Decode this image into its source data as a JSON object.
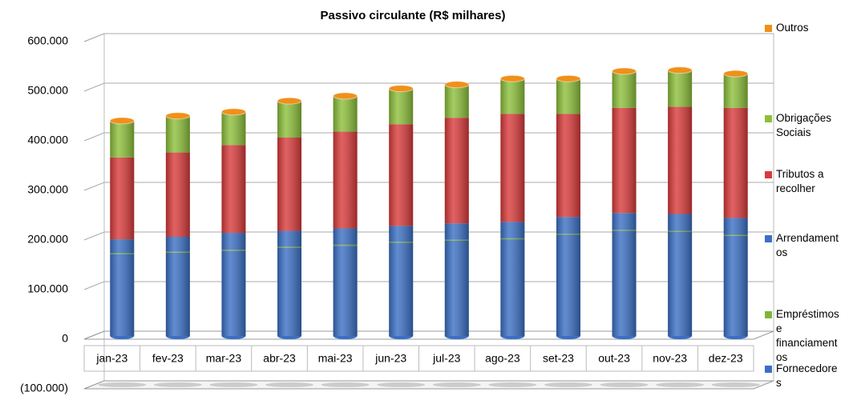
{
  "chart_data": {
    "type": "bar",
    "stacked": true,
    "title": "Passivo circulante (R$ milhares)",
    "categories": [
      "jan-23",
      "fev-23",
      "mar-23",
      "abr-23",
      "mai-23",
      "jun-23",
      "jul-23",
      "ago-23",
      "set-23",
      "out-23",
      "nov-23",
      "dez-23"
    ],
    "series": [
      {
        "name": "Fornecedores",
        "color": "#3a6fc4",
        "values": [
          165000,
          168000,
          172000,
          178000,
          182000,
          188000,
          192000,
          195000,
          204000,
          212000,
          210000,
          202000
        ]
      },
      {
        "name": "Empréstimos e financiamentos",
        "color": "#7fb53a",
        "values": [
          2000,
          2000,
          2000,
          2000,
          2000,
          2000,
          2000,
          2000,
          2000,
          2000,
          2000,
          2000
        ]
      },
      {
        "name": "Arrendamentos",
        "color": "#3a6fc4",
        "values": [
          28000,
          30000,
          34000,
          32000,
          33000,
          32000,
          33000,
          33000,
          34000,
          34000,
          34000,
          34000
        ]
      },
      {
        "name": "Tributos a recolher",
        "color": "#d93a3a",
        "values": [
          165000,
          170000,
          177000,
          188000,
          195000,
          205000,
          213000,
          218000,
          208000,
          212000,
          216000,
          222000
        ]
      },
      {
        "name": "Obrigações Sociais",
        "color": "#8cbf3a",
        "values": [
          70000,
          70000,
          63000,
          70000,
          68000,
          68000,
          63000,
          67000,
          67000,
          70000,
          70000,
          65000
        ]
      },
      {
        "name": "Outros",
        "color": "#f0901a",
        "values": [
          4000,
          4000,
          4000,
          4000,
          4000,
          4000,
          4000,
          4000,
          4000,
          4000,
          4000,
          4000
        ]
      }
    ],
    "ylim": [
      -100000,
      600000
    ],
    "yticks": [
      {
        "value": -100000,
        "label": "(100.000)"
      },
      0,
      {
        "value": 100000,
        "label": "100.000"
      },
      {
        "value": 200000,
        "label": "200.000"
      },
      {
        "value": 300000,
        "label": "300.000"
      },
      {
        "value": 400000,
        "label": "400.000"
      },
      {
        "value": 500000,
        "label": "500.000"
      },
      {
        "value": 600000,
        "label": "600.000"
      }
    ],
    "grid": true,
    "legend": "right"
  }
}
